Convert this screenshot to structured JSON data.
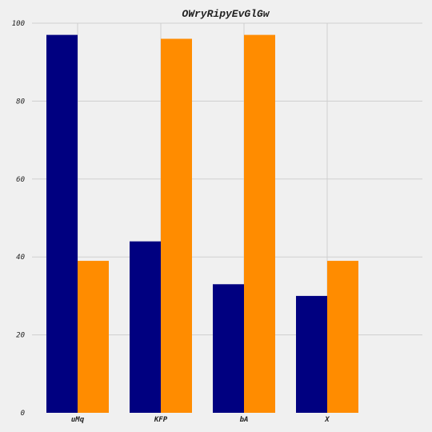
{
  "chart_data": {
    "type": "bar",
    "title": "OWryRipyEvGlGw",
    "xlabel": "",
    "ylabel": "",
    "categories": [
      "uMq",
      "KFP",
      "bA",
      "X"
    ],
    "series": [
      {
        "color": "#000080",
        "values": [
          97,
          44,
          33,
          30
        ]
      },
      {
        "color": "#ff8c00",
        "values": [
          39,
          96,
          97,
          39
        ]
      }
    ],
    "ylim": [
      0,
      100
    ],
    "yticks": [
      0,
      20,
      40,
      60,
      80,
      100
    ],
    "grid": true,
    "legend": "none"
  }
}
